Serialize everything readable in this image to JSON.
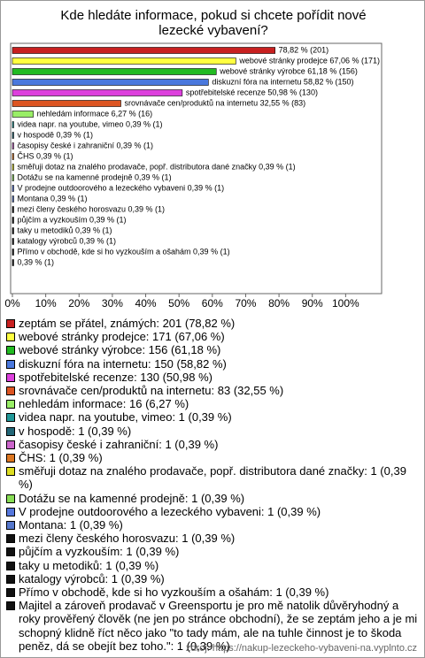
{
  "chart_data": {
    "type": "barh",
    "title": "Kde hledáte informace, pokud si chcete pořídit nové lezecké vybavení?",
    "values": [
      78.82,
      67.06,
      61.18,
      58.82,
      50.98,
      32.55,
      6.27,
      0.39,
      0.39,
      0.39,
      0.39,
      0.39,
      0.39,
      0.39,
      0.39,
      0.39,
      0.39,
      0.39,
      0.39,
      0.39,
      0.39
    ],
    "value_labels": [
      "78,82 % (201)",
      "webové stránky prodejce 67,06 % (171)",
      "webové stránky výrobce 61,18 % (156)",
      "diskuzní fóra na internetu 58,82 % (150)",
      "spotřebitelské recenze 50,98 % (130)",
      "srovnávače cen/produktů na internetu 32,55 % (83)",
      "nehledám informace 6,27 % (16)",
      "videa napr. na youtube, vimeo 0,39 % (1)",
      "v hospodě 0,39 % (1)",
      "časopisy české i zahraniční 0,39 % (1)",
      "ČHS 0,39 % (1)",
      "směřuji dotaz na znalého prodavače, popř. distributora dané značky 0,39 % (1)",
      "Dotážu se na kamenné prodejně 0,39 % (1)",
      "V prodejne outdoorového a lezeckého vybaveni 0,39 % (1)",
      "Montana 0,39 % (1)",
      "mezi členy českého horosvazu 0,39 % (1)",
      "půjčím a vyzkouším 0,39 % (1)",
      "taky u metodiků 0,39 % (1)",
      "katalogy výrobců 0,39 % (1)",
      "Přímo v obchodě, kde si ho vyzkouším a ošahám 0,39 % (1)",
      "0,39 % (1)"
    ],
    "colors": [
      "#c82020",
      "#ffff40",
      "#22bb22",
      "#4a78dd",
      "#dd40dd",
      "#dd5522",
      "#99ee66",
      "#229999",
      "#226677",
      "#cc66cc",
      "#dd7722",
      "#dddd22",
      "#88dd55",
      "#5577dd",
      "#5577cc",
      "#111111",
      "#111111",
      "#111111",
      "#111111",
      "#111111",
      "#111111"
    ],
    "legend_labels": [
      "zeptám se přátel, známých: 201 (78,82 %)",
      "webové stránky prodejce: 171 (67,06 %)",
      "webové stránky výrobce: 156 (61,18 %)",
      "diskuzní fóra na internetu: 150 (58,82 %)",
      "spotřebitelské recenze: 130 (50,98 %)",
      "srovnávače cen/produktů na internetu: 83 (32,55 %)",
      "nehledám informace: 16 (6,27 %)",
      "videa napr. na youtube, vimeo: 1 (0,39 %)",
      "v hospodě: 1 (0,39 %)",
      "časopisy české i zahraniční: 1 (0,39 %)",
      "ČHS: 1 (0,39 %)",
      "směřuji dotaz na znalého prodavače, popř. distributora dané značky: 1 (0,39 %)",
      "Dotážu se na kamenné prodejně: 1 (0,39 %)",
      "V prodejne outdoorového a lezeckého vybaveni: 1 (0,39 %)",
      "Montana: 1 (0,39 %)",
      "mezi členy českého horosvazu: 1 (0,39 %)",
      "půjčím a vyzkouším: 1 (0,39 %)",
      "taky u metodiků: 1 (0,39 %)",
      "katalogy výrobců: 1 (0,39 %)",
      "Přímo v obchodě, kde si ho vyzkouším a ošahám: 1 (0,39 %)",
      "Majitel a zároveň prodavač v Greensportu je pro mě natolik důvěryhodný a roky prověřený člověk (ne jen po stránce obchodní), že se zeptám jeho a je mi schopný klidně říct něco jako \"to tady mám, ale na tuhle činnost je to škoda peněz, dá se obejít bez toho.\": 1 (0,39 %)"
    ],
    "xlim": [
      0,
      110
    ],
    "xticks": [
      {
        "value": 0,
        "label": "0%"
      },
      {
        "value": 10,
        "label": "10%"
      },
      {
        "value": 20,
        "label": "20%"
      },
      {
        "value": 30,
        "label": "30%"
      },
      {
        "value": 40,
        "label": "40%"
      },
      {
        "value": 50,
        "label": "50%"
      },
      {
        "value": 60,
        "label": "60%"
      },
      {
        "value": 70,
        "label": "70%"
      },
      {
        "value": 80,
        "label": "80%"
      },
      {
        "value": 90,
        "label": "90%"
      },
      {
        "value": 100,
        "label": "100%"
      }
    ],
    "source": "zdroj: https://nakup-lezeckeho-vybaveni-na.vyplnto.cz"
  }
}
